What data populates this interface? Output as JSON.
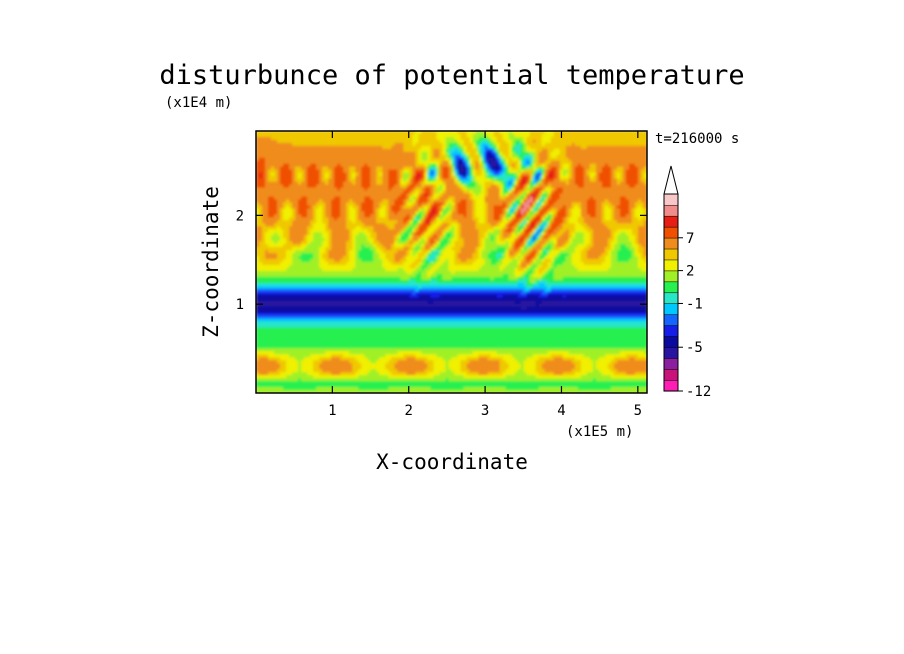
{
  "chart_data": {
    "type": "heatmap",
    "title": "disturbunce of potential temperature",
    "xlabel": "X-coordinate",
    "ylabel": "Z-coordinate",
    "x_unit": "(x1E5 m)",
    "y_unit": "(x1E4 m)",
    "time_label": "t=216000 s",
    "xlim": [
      0,
      5.12
    ],
    "ylim": [
      0,
      2.95
    ],
    "x_ticks": [
      "1",
      "2",
      "3",
      "4",
      "5"
    ],
    "x_tick_values": [
      1,
      2,
      3,
      4,
      5
    ],
    "y_ticks": [
      "1",
      "2"
    ],
    "y_tick_values": [
      1,
      2
    ],
    "colorbar": {
      "tick_labels": [
        "7",
        "2",
        "-1",
        "-5",
        "-12"
      ],
      "tick_values": [
        7,
        2,
        -1,
        -5,
        -12
      ],
      "levels": [
        -12,
        -10,
        -8,
        -6,
        -5,
        -4,
        -3,
        -2,
        -1,
        0,
        1,
        2,
        3,
        5,
        7,
        9,
        11
      ],
      "colors": [
        "#ff1eb4",
        "#c8147a",
        "#8c1ea0",
        "#2814a0",
        "#0a0aa0",
        "#141ee6",
        "#1464ff",
        "#00c8ff",
        "#28e6c8",
        "#28f050",
        "#a0f028",
        "#f0f000",
        "#f0c800",
        "#f08c1e",
        "#f05000",
        "#e61e14",
        "#f08c8c",
        "#f8c8c8"
      ],
      "extend": "max"
    },
    "grid": false,
    "legend": "colorbar-right"
  }
}
